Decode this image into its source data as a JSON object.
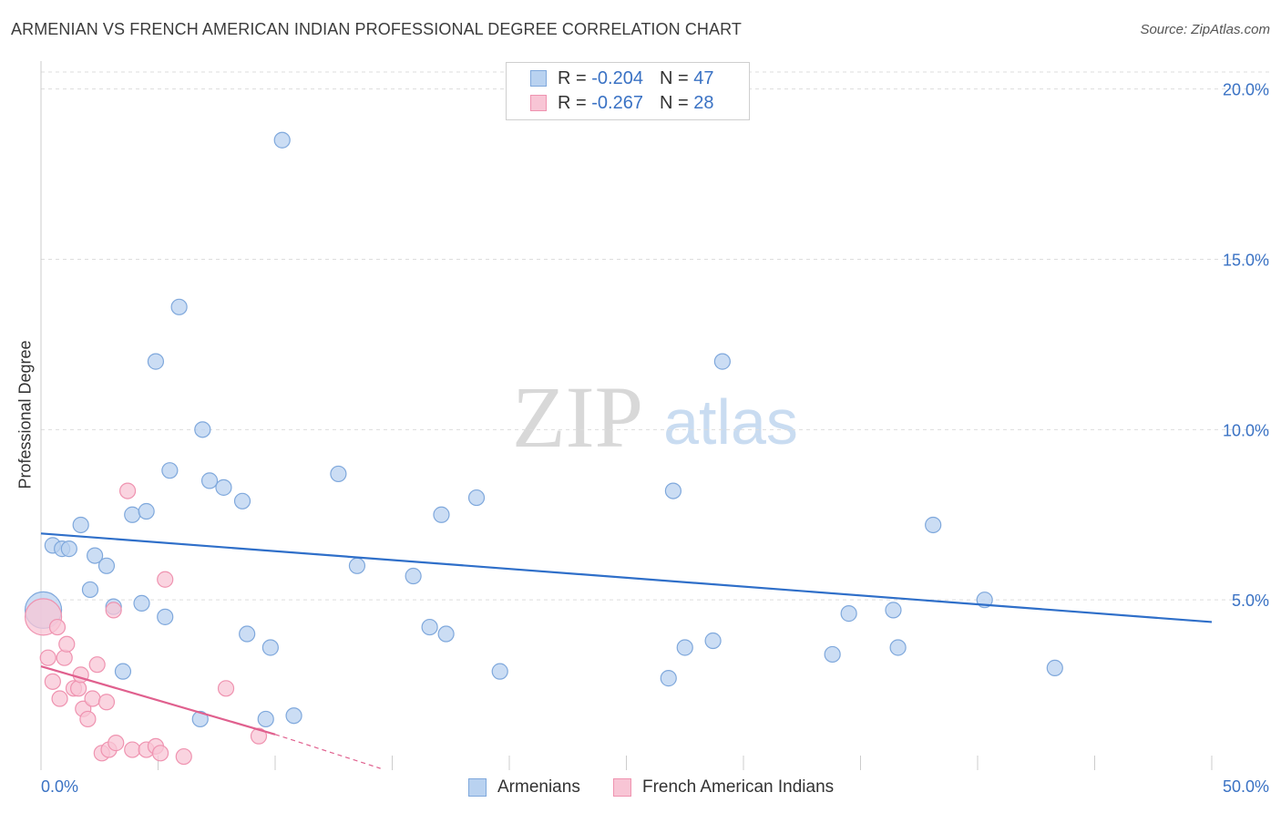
{
  "title": "ARMENIAN VS FRENCH AMERICAN INDIAN PROFESSIONAL DEGREE CORRELATION CHART",
  "source": "Source: ZipAtlas.com",
  "watermark": {
    "zip": "ZIP",
    "atlas": "atlas"
  },
  "colors": {
    "armenian_fill": "#b9d2f0",
    "armenian_stroke": "#7fa8dc",
    "armenian_line": "#2f6fc9",
    "french_fill": "#f8c5d5",
    "french_stroke": "#ef93b0",
    "french_line": "#e0608e",
    "tick_label": "#3a72c4",
    "grid": "#dddddd"
  },
  "legend": {
    "rows": [
      {
        "r_label": "R =",
        "r_value": "-0.204",
        "n_label": "N =",
        "n_value": "47"
      },
      {
        "r_label": "R =",
        "r_value": "-0.267",
        "n_label": "N =",
        "n_value": "28"
      }
    ]
  },
  "chart_data": {
    "type": "scatter",
    "title": "ARMENIAN VS FRENCH AMERICAN INDIAN PROFESSIONAL DEGREE CORRELATION CHART",
    "xlabel": "",
    "ylabel": "Professional Degree",
    "xlim": [
      0,
      50
    ],
    "ylim": [
      0,
      20.5
    ],
    "x_tick_labels": [
      "0.0%",
      "50.0%"
    ],
    "y_ticks": [
      5,
      10,
      15,
      20
    ],
    "y_tick_labels": [
      "5.0%",
      "10.0%",
      "15.0%",
      "20.0%"
    ],
    "series": [
      {
        "name": "Armenians",
        "r": -0.204,
        "n": 47,
        "trend": {
          "x": [
            0,
            50
          ],
          "y": [
            6.95,
            4.35
          ]
        },
        "points": [
          {
            "x": 0.1,
            "y": 4.7,
            "big": true
          },
          {
            "x": 0.5,
            "y": 6.6
          },
          {
            "x": 0.9,
            "y": 6.5
          },
          {
            "x": 1.2,
            "y": 6.5
          },
          {
            "x": 1.7,
            "y": 7.2
          },
          {
            "x": 2.1,
            "y": 5.3
          },
          {
            "x": 2.3,
            "y": 6.3
          },
          {
            "x": 2.8,
            "y": 6.0
          },
          {
            "x": 3.1,
            "y": 4.8
          },
          {
            "x": 3.5,
            "y": 2.9
          },
          {
            "x": 3.9,
            "y": 7.5
          },
          {
            "x": 4.3,
            "y": 4.9
          },
          {
            "x": 4.5,
            "y": 7.6
          },
          {
            "x": 4.9,
            "y": 12.0
          },
          {
            "x": 5.3,
            "y": 4.5
          },
          {
            "x": 5.5,
            "y": 8.8
          },
          {
            "x": 5.9,
            "y": 13.6
          },
          {
            "x": 6.8,
            "y": 1.5
          },
          {
            "x": 6.9,
            "y": 10.0
          },
          {
            "x": 7.2,
            "y": 8.5
          },
          {
            "x": 7.8,
            "y": 8.3
          },
          {
            "x": 8.6,
            "y": 7.9
          },
          {
            "x": 8.8,
            "y": 4.0
          },
          {
            "x": 9.6,
            "y": 1.5
          },
          {
            "x": 9.8,
            "y": 3.6
          },
          {
            "x": 10.3,
            "y": 18.5
          },
          {
            "x": 10.8,
            "y": 1.6
          },
          {
            "x": 12.7,
            "y": 8.7
          },
          {
            "x": 13.5,
            "y": 6.0
          },
          {
            "x": 15.9,
            "y": 5.7
          },
          {
            "x": 16.6,
            "y": 4.2
          },
          {
            "x": 17.1,
            "y": 7.5
          },
          {
            "x": 17.3,
            "y": 4.0
          },
          {
            "x": 18.6,
            "y": 8.0
          },
          {
            "x": 19.6,
            "y": 2.9
          },
          {
            "x": 26.8,
            "y": 2.7
          },
          {
            "x": 27.0,
            "y": 8.2
          },
          {
            "x": 27.5,
            "y": 3.6
          },
          {
            "x": 28.7,
            "y": 3.8
          },
          {
            "x": 29.1,
            "y": 12.0
          },
          {
            "x": 33.8,
            "y": 3.4
          },
          {
            "x": 34.5,
            "y": 4.6
          },
          {
            "x": 36.4,
            "y": 4.7
          },
          {
            "x": 36.6,
            "y": 3.6
          },
          {
            "x": 38.1,
            "y": 7.2
          },
          {
            "x": 40.3,
            "y": 5.0
          },
          {
            "x": 43.3,
            "y": 3.0
          }
        ]
      },
      {
        "name": "French American Indians",
        "r": -0.267,
        "n": 28,
        "trend": {
          "x": [
            0,
            10
          ],
          "y": [
            3.05,
            1.05
          ]
        },
        "trend_dashed": {
          "x": [
            10,
            14.5
          ],
          "y": [
            1.05,
            0.05
          ]
        },
        "points": [
          {
            "x": 0.1,
            "y": 4.5,
            "big": true
          },
          {
            "x": 0.3,
            "y": 3.3
          },
          {
            "x": 0.5,
            "y": 2.6
          },
          {
            "x": 0.7,
            "y": 4.2
          },
          {
            "x": 0.8,
            "y": 2.1
          },
          {
            "x": 1.0,
            "y": 3.3
          },
          {
            "x": 1.1,
            "y": 3.7
          },
          {
            "x": 1.4,
            "y": 2.4
          },
          {
            "x": 1.6,
            "y": 2.4
          },
          {
            "x": 1.7,
            "y": 2.8
          },
          {
            "x": 1.8,
            "y": 1.8
          },
          {
            "x": 2.0,
            "y": 1.5
          },
          {
            "x": 2.2,
            "y": 2.1
          },
          {
            "x": 2.4,
            "y": 3.1
          },
          {
            "x": 2.6,
            "y": 0.5
          },
          {
            "x": 2.8,
            "y": 2.0
          },
          {
            "x": 2.9,
            "y": 0.6
          },
          {
            "x": 3.2,
            "y": 0.8
          },
          {
            "x": 3.1,
            "y": 4.7
          },
          {
            "x": 3.7,
            "y": 8.2
          },
          {
            "x": 3.9,
            "y": 0.6
          },
          {
            "x": 4.5,
            "y": 0.6
          },
          {
            "x": 4.9,
            "y": 0.7
          },
          {
            "x": 5.1,
            "y": 0.5
          },
          {
            "x": 5.3,
            "y": 5.6
          },
          {
            "x": 6.1,
            "y": 0.4
          },
          {
            "x": 7.9,
            "y": 2.4
          },
          {
            "x": 9.3,
            "y": 1.0
          }
        ]
      }
    ]
  }
}
